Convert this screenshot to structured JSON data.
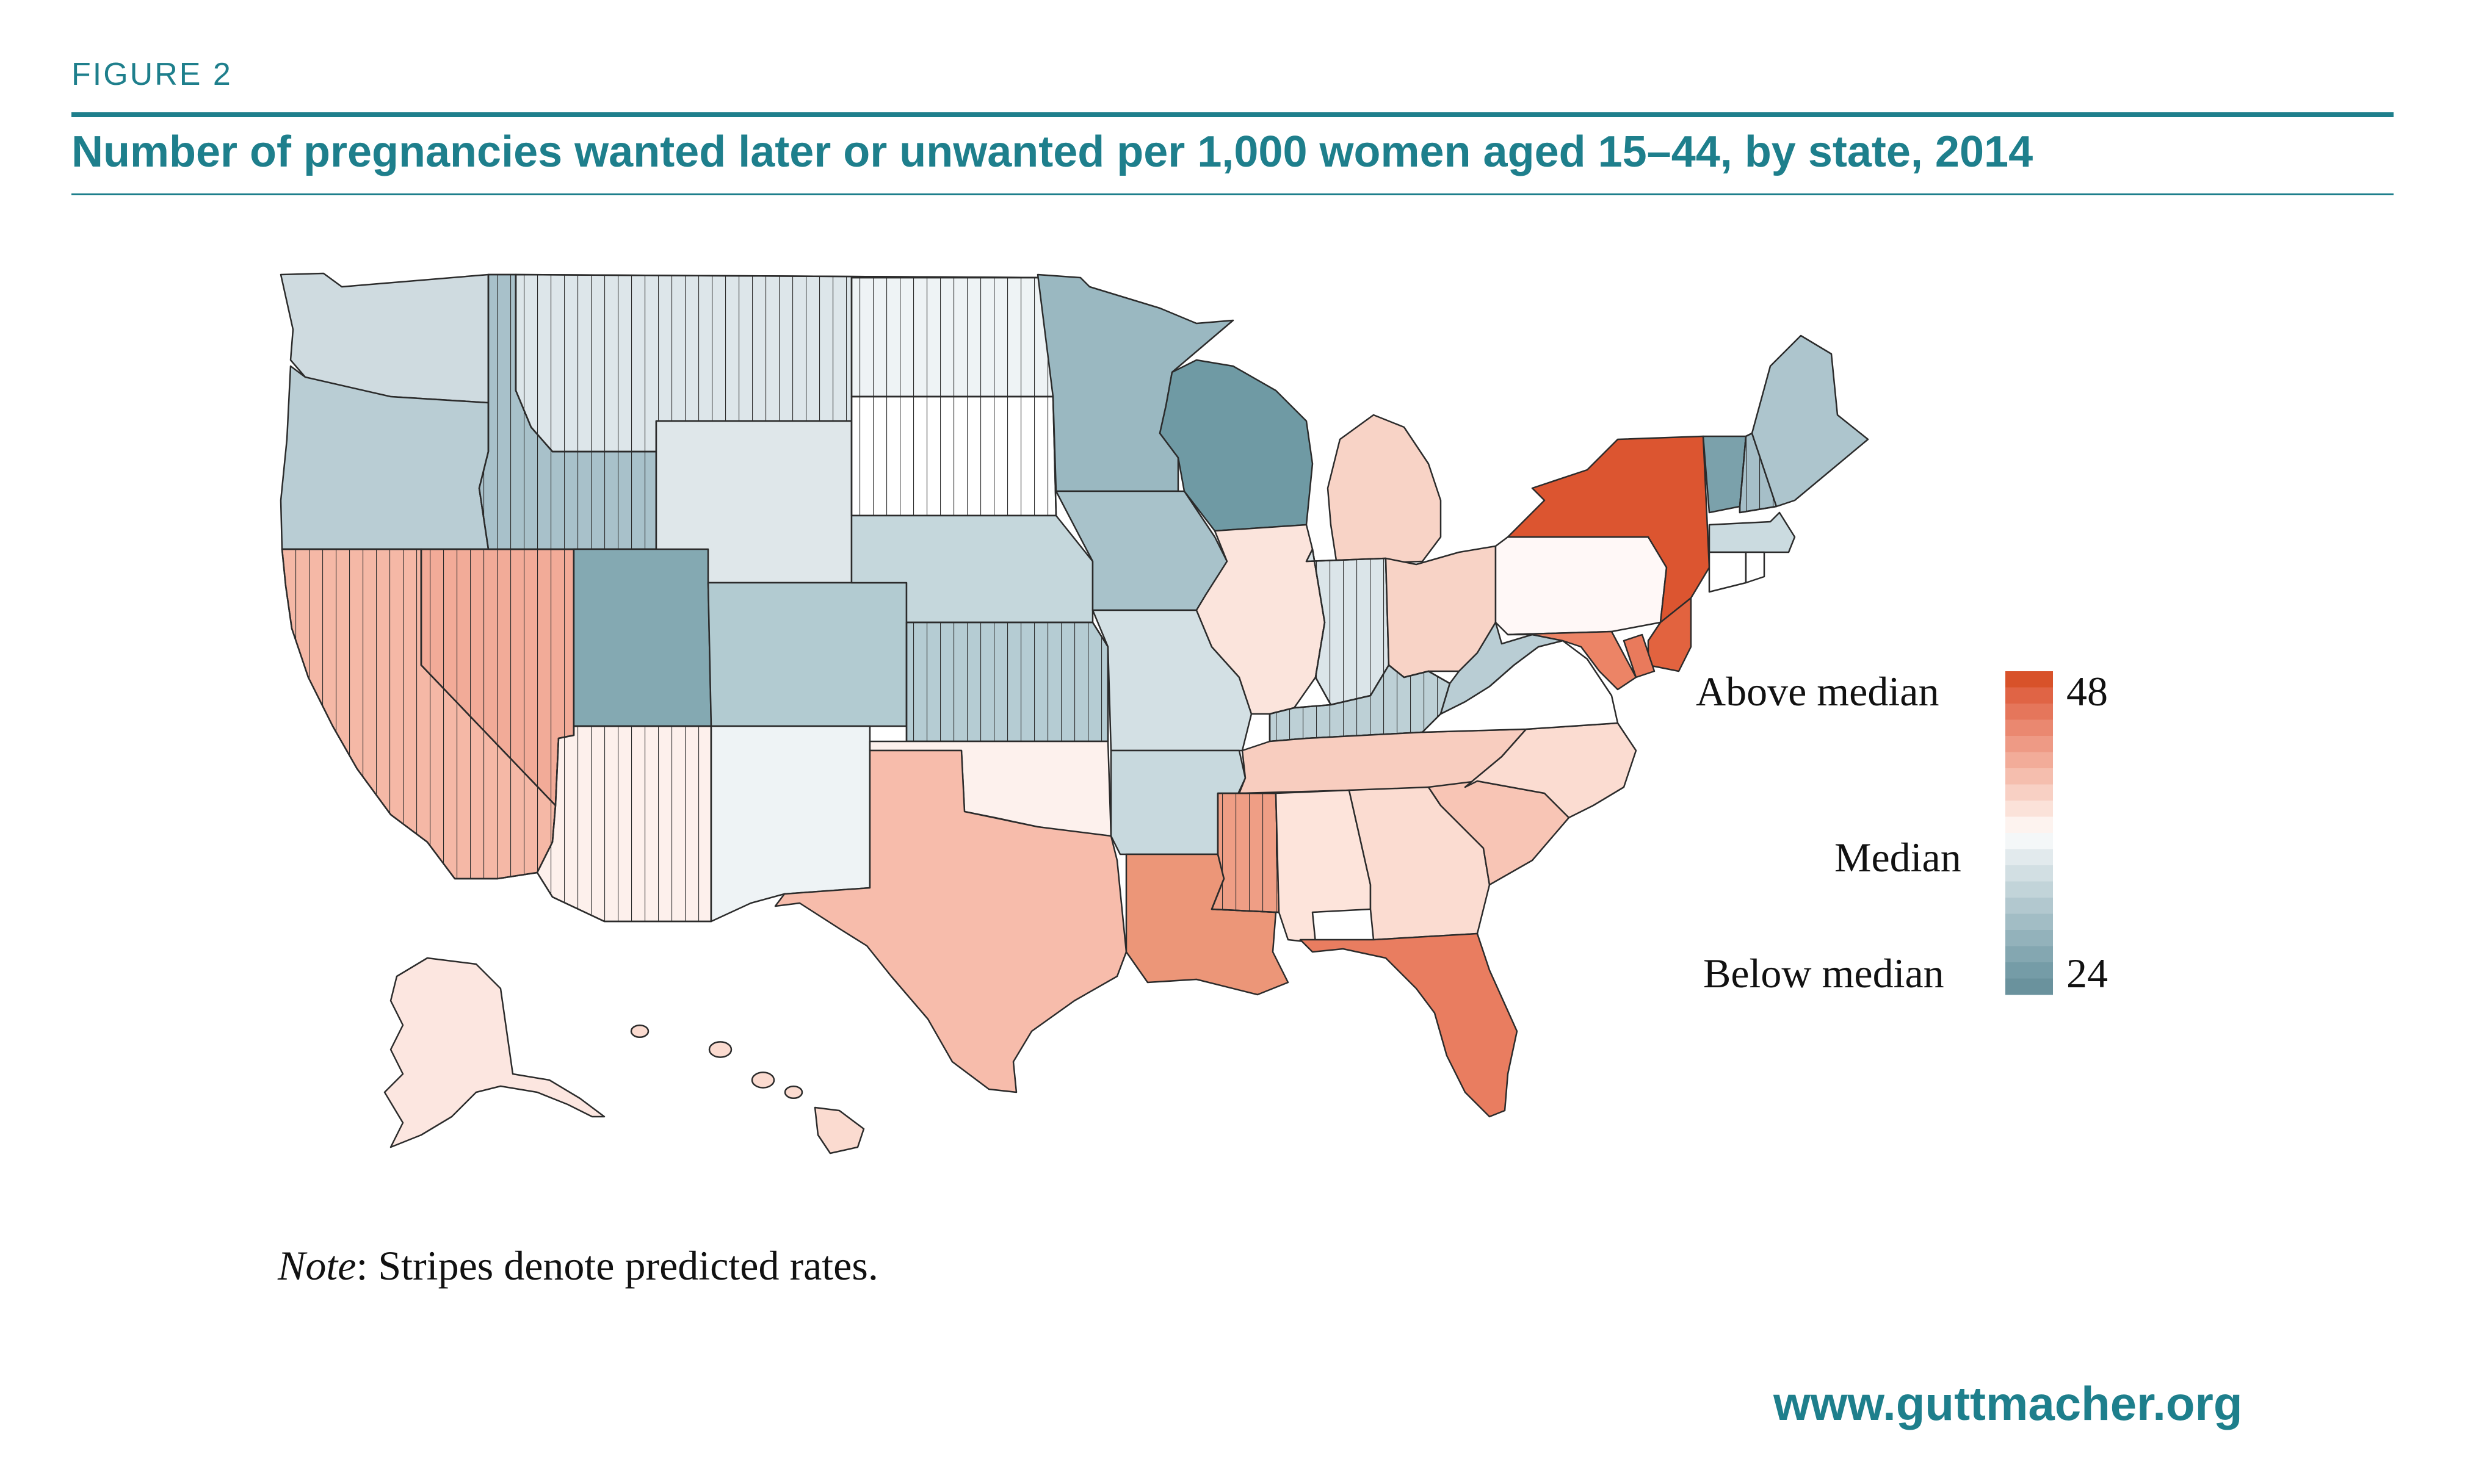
{
  "figure_label": "FIGURE 2",
  "title": "Number of pregnancies wanted later or unwanted per 1,000 women aged 15–44, by state, 2014",
  "legend": {
    "above_label": "Above median",
    "median_label": "Median",
    "below_label": "Below median",
    "max_value": "48",
    "min_value": "24",
    "colors": [
      "#d8522a",
      "#e06445",
      "#e5765b",
      "#ea8870",
      "#ee9a85",
      "#f2ac99",
      "#f5beae",
      "#f8d0c4",
      "#fbe2d9",
      "#fdf3ef",
      "#f4f7f8",
      "#e2eaed",
      "#d2dfe3",
      "#c2d4d9",
      "#b2c8cf",
      "#a2bdc5",
      "#93b2bb",
      "#84a7b1",
      "#759ca7",
      "#6a929d"
    ]
  },
  "note_label": "Note",
  "note_text": ": Stripes denote predicted rates.",
  "website": "www.guttmacher.org",
  "map_data": {
    "states": [
      {
        "id": "WA",
        "color": "#cfdbe0",
        "striped": false
      },
      {
        "id": "OR",
        "color": "#b9cdd4",
        "striped": false
      },
      {
        "id": "CA",
        "color": "#f5b8a6",
        "striped": true
      },
      {
        "id": "NV",
        "color": "#f2ab98",
        "striped": true
      },
      {
        "id": "ID",
        "color": "#a8c1ca",
        "striped": true
      },
      {
        "id": "MT",
        "color": "#dde6ea",
        "striped": true
      },
      {
        "id": "WY",
        "color": "#dfe7ea",
        "striped": false
      },
      {
        "id": "UT",
        "color": "#84a9b2",
        "striped": false
      },
      {
        "id": "AZ",
        "color": "#fdf0ec",
        "striped": true
      },
      {
        "id": "CO",
        "color": "#b2cbd1",
        "striped": false
      },
      {
        "id": "NM",
        "color": "#eef3f5",
        "striped": false
      },
      {
        "id": "ND",
        "color": "#eef3f5",
        "striped": true
      },
      {
        "id": "SD",
        "color": "#ffffff",
        "striped": true
      },
      {
        "id": "NE",
        "color": "#c5d7dc",
        "striped": false
      },
      {
        "id": "KS",
        "color": "#b5ccd3",
        "striped": true
      },
      {
        "id": "OK",
        "color": "#fdf1ed",
        "striped": false
      },
      {
        "id": "TX",
        "color": "#f7bcab",
        "striped": false
      },
      {
        "id": "MN",
        "color": "#9ab8c1",
        "striped": false
      },
      {
        "id": "IA",
        "color": "#a8c2ca",
        "striped": false
      },
      {
        "id": "MO",
        "color": "#d3e0e4",
        "striped": false
      },
      {
        "id": "AR",
        "color": "#c8d9de",
        "striped": false
      },
      {
        "id": "LA",
        "color": "#ec9678",
        "striped": false
      },
      {
        "id": "WI",
        "color": "#6f9aa4",
        "striped": false
      },
      {
        "id": "IL",
        "color": "#fbe4dc",
        "striped": false
      },
      {
        "id": "MI",
        "color": "#f8d3c6",
        "striped": false
      },
      {
        "id": "IN",
        "color": "#dbe5e9",
        "striped": true
      },
      {
        "id": "OH",
        "color": "#f8d3c6",
        "striped": false
      },
      {
        "id": "KY",
        "color": "#bdd0d6",
        "striped": true
      },
      {
        "id": "TN",
        "color": "#f8cdbf",
        "striped": false
      },
      {
        "id": "MS",
        "color": "#ef9e85",
        "striped": true
      },
      {
        "id": "AL",
        "color": "#fde4db",
        "striped": false
      },
      {
        "id": "GA",
        "color": "#fbdcd1",
        "striped": false
      },
      {
        "id": "FL",
        "color": "#e97d60",
        "striped": false
      },
      {
        "id": "SC",
        "color": "#f8c5b5",
        "striped": false
      },
      {
        "id": "NC",
        "color": "#fbdcd1",
        "striped": false
      },
      {
        "id": "VA",
        "color": "#ffffff",
        "striped": false
      },
      {
        "id": "WV",
        "color": "#b9cdd4",
        "striped": false
      },
      {
        "id": "PA",
        "color": "#fff8f7",
        "striped": false
      },
      {
        "id": "NY",
        "color": "#dc5530",
        "striped": false
      },
      {
        "id": "VT",
        "color": "#7ba1ab",
        "striped": false
      },
      {
        "id": "NH",
        "color": "#a6bfc8",
        "striped": true
      },
      {
        "id": "ME",
        "color": "#adc5cd",
        "striped": false
      },
      {
        "id": "MA",
        "color": "#cbdbe0",
        "striped": false
      },
      {
        "id": "CT",
        "color": "#ffffff",
        "striped": false
      },
      {
        "id": "RI",
        "color": "#ffffff",
        "striped": false
      },
      {
        "id": "NJ",
        "color": "#e2633f",
        "striped": false
      },
      {
        "id": "DE",
        "color": "#e97a5c",
        "striped": false
      },
      {
        "id": "MD",
        "color": "#ec8466",
        "striped": false
      },
      {
        "id": "AK",
        "color": "#fce6e0",
        "striped": false
      },
      {
        "id": "HI",
        "color": "#fbdbd0",
        "striped": false
      }
    ]
  }
}
